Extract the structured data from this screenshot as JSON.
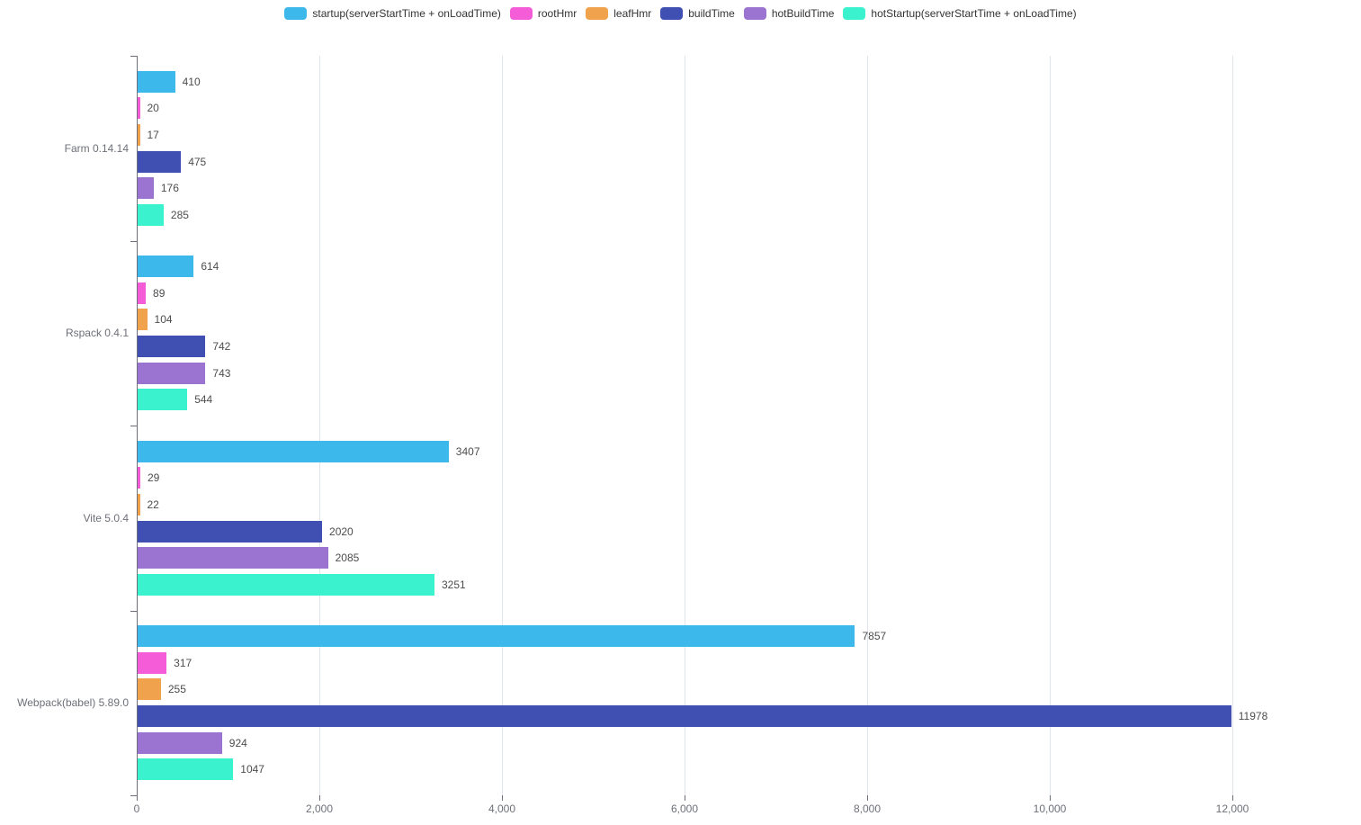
{
  "chart_data": {
    "type": "bar",
    "orientation": "horizontal",
    "title": "",
    "categories": [
      "Farm 0.14.14",
      "Rspack 0.4.1",
      "Vite 5.0.4",
      "Webpack(babel) 5.89.0"
    ],
    "series": [
      {
        "name": "startup(serverStartTime + onLoadTime)",
        "color": "#3db8ea",
        "values": [
          410,
          614,
          3407,
          7857
        ]
      },
      {
        "name": "rootHmr",
        "color": "#f45cd8",
        "values": [
          20,
          89,
          29,
          317
        ]
      },
      {
        "name": "leafHmr",
        "color": "#f0a24d",
        "values": [
          17,
          104,
          22,
          255
        ]
      },
      {
        "name": "buildTime",
        "color": "#404fb2",
        "values": [
          475,
          742,
          2020,
          11978
        ]
      },
      {
        "name": "hotBuildTime",
        "color": "#9a74d0",
        "values": [
          176,
          743,
          2085,
          924
        ]
      },
      {
        "name": "hotStartup(serverStartTime + onLoadTime)",
        "color": "#3bf2cf",
        "values": [
          285,
          544,
          3251,
          1047
        ]
      }
    ],
    "xlim": [
      0,
      12000
    ],
    "x_ticks": [
      0,
      2000,
      4000,
      6000,
      8000,
      10000,
      12000
    ],
    "x_tick_labels": [
      "0",
      "2,000",
      "4,000",
      "6,000",
      "8,000",
      "10,000",
      "12,000"
    ],
    "value_labels_shown": true,
    "grid": true,
    "legend_position": "top"
  },
  "colors": {
    "background": "#ffffff",
    "axis_line": "#6e7079",
    "grid_line": "#e0e5ec",
    "axis_label": "#6e7079",
    "value_label": "#4d4d4d",
    "legend_text": "#333333"
  }
}
